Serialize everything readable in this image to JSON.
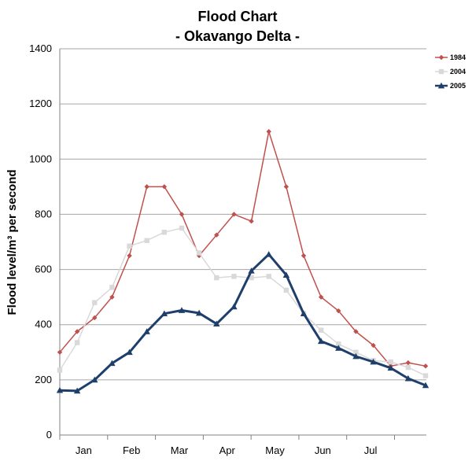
{
  "chart_data": {
    "type": "line",
    "title": "Flood Chart",
    "subtitle": "- Okavango Delta -",
    "ylabel": "Flood level/m³ per second",
    "xlabel": "",
    "ylim": [
      0,
      1400
    ],
    "yticks": [
      0,
      200,
      400,
      600,
      800,
      1000,
      1200,
      1400
    ],
    "grid": "horizontal",
    "legend_position": "top-right",
    "month_labels": [
      "Jan",
      "Feb",
      "Mar",
      "Apr",
      "May",
      "Jun",
      "Jul"
    ],
    "series": [
      {
        "name": "1984",
        "color": "#c0504d",
        "marker": "diamond",
        "values": [
          300,
          375,
          425,
          500,
          650,
          900,
          900,
          800,
          650,
          725,
          800,
          775,
          1100,
          900,
          650,
          500,
          450,
          375,
          325,
          250,
          262,
          250
        ]
      },
      {
        "name": "2004",
        "color": "#d9d9d9",
        "marker": "square",
        "values": [
          235,
          335,
          480,
          535,
          685,
          705,
          735,
          750,
          660,
          570,
          575,
          570,
          575,
          525,
          440,
          380,
          330,
          300,
          270,
          265,
          245,
          215
        ]
      },
      {
        "name": "2005",
        "color": "#1f3f6b",
        "marker": "triangle",
        "values": [
          162,
          160,
          200,
          260,
          300,
          375,
          440,
          452,
          442,
          403,
          465,
          595,
          655,
          580,
          440,
          340,
          315,
          285,
          265,
          243,
          205,
          180
        ]
      }
    ]
  }
}
